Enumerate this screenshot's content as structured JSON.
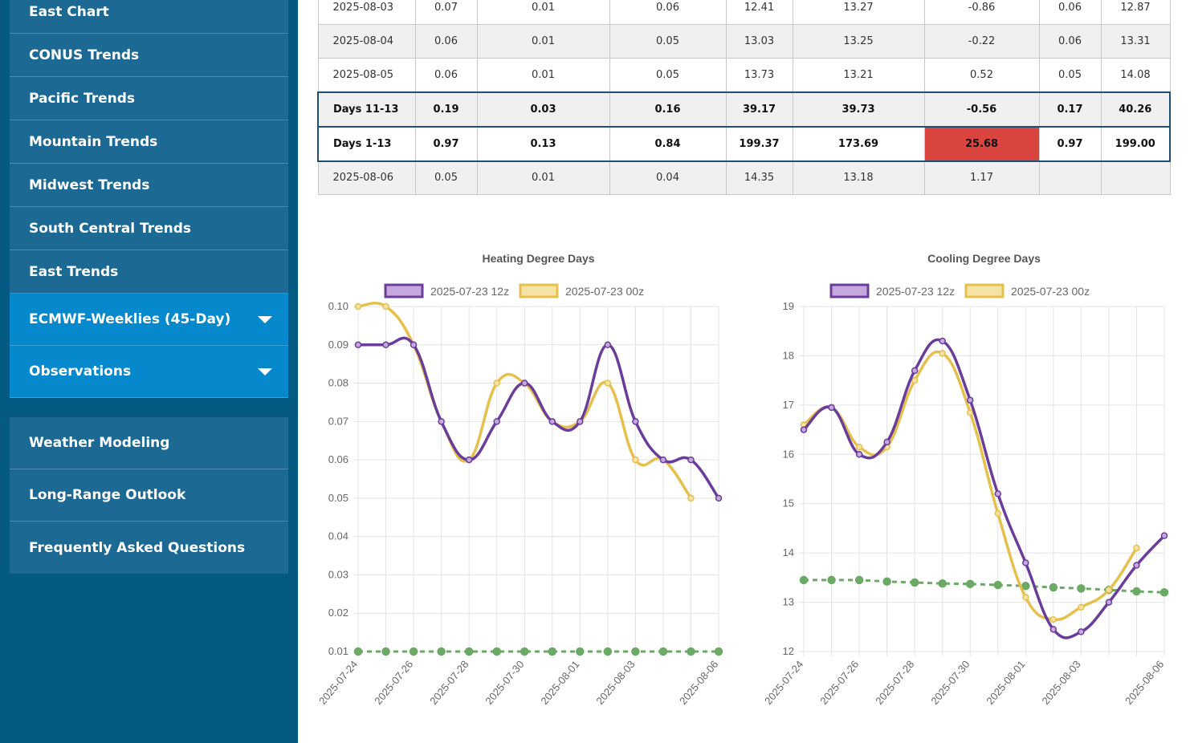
{
  "sidebar": {
    "top_items": [
      {
        "label": "East Chart"
      },
      {
        "label": "CONUS Trends"
      },
      {
        "label": "Pacific Trends"
      },
      {
        "label": "Mountain Trends"
      },
      {
        "label": "Midwest Trends"
      },
      {
        "label": "South Central Trends"
      },
      {
        "label": "East Trends"
      }
    ],
    "expandable_items": [
      {
        "label": "ECMWF-Weeklies (45-Day)"
      },
      {
        "label": "Observations"
      }
    ],
    "bottom_items": [
      {
        "label": "Weather Modeling"
      },
      {
        "label": "Long-Range Outlook"
      },
      {
        "label": "Frequently Asked Questions"
      }
    ],
    "colors": {
      "sidebar_bg": "#055a84",
      "item_bg": "#1c6a93",
      "active_bg": "#0688cc"
    }
  },
  "table": {
    "rows": [
      {
        "type": "date",
        "cells": [
          "2025-08-03",
          "0.07",
          "0.01",
          "0.06",
          "12.41",
          "13.27",
          "-0.86",
          "0.06",
          "12.87"
        ]
      },
      {
        "type": "date",
        "cells": [
          "2025-08-04",
          "0.06",
          "0.01",
          "0.05",
          "13.03",
          "13.25",
          "-0.22",
          "0.06",
          "13.31"
        ]
      },
      {
        "type": "date",
        "cells": [
          "2025-08-05",
          "0.06",
          "0.01",
          "0.05",
          "13.73",
          "13.21",
          "0.52",
          "0.05",
          "14.08"
        ]
      },
      {
        "type": "sum11",
        "cells": [
          "Days 11-13",
          "0.19",
          "0.03",
          "0.16",
          "39.17",
          "39.73",
          "-0.56",
          "0.17",
          "40.26"
        ]
      },
      {
        "type": "sum1",
        "cells": [
          "Days 1-13",
          "0.97",
          "0.13",
          "0.84",
          "199.37",
          "173.69",
          "25.68",
          "0.97",
          "199.00"
        ]
      },
      {
        "type": "date",
        "cells": [
          "2025-08-06",
          "0.05",
          "0.01",
          "0.04",
          "14.35",
          "13.18",
          "1.17",
          "",
          ""
        ]
      }
    ],
    "highlight_color": "#d9443f"
  },
  "chart_data": [
    {
      "type": "line",
      "title": "Heating Degree Days",
      "x": [
        "2025-07-24",
        "2025-07-25",
        "2025-07-26",
        "2025-07-27",
        "2025-07-28",
        "2025-07-29",
        "2025-07-30",
        "2025-07-31",
        "2025-08-01",
        "2025-08-02",
        "2025-08-03",
        "2025-08-04",
        "2025-08-05",
        "2025-08-06"
      ],
      "x_tick_labels": [
        "2025-07-24",
        "2025-07-26",
        "2025-07-28",
        "2025-07-30",
        "2025-08-01",
        "2025-08-03",
        "2025-08-06"
      ],
      "x_tick_index": [
        0,
        2,
        4,
        6,
        8,
        10,
        13
      ],
      "ylim": [
        0.01,
        0.1
      ],
      "y_ticks": [
        "0.01",
        "0.02",
        "0.03",
        "0.04",
        "0.05",
        "0.06",
        "0.07",
        "0.08",
        "0.09",
        "0.10"
      ],
      "grid": true,
      "legend": "top",
      "series": [
        {
          "name": "2025-07-23 12z",
          "color": "#6a3d9a",
          "fill": "#c5a8dd",
          "values": [
            0.09,
            0.09,
            0.09,
            0.07,
            0.06,
            0.07,
            0.08,
            0.07,
            0.07,
            0.09,
            0.07,
            0.06,
            0.06,
            0.05
          ]
        },
        {
          "name": "2025-07-23 00z",
          "color": "#e6c04c",
          "fill": "#f5e3a6",
          "values": [
            0.1,
            0.1,
            0.09,
            0.07,
            0.06,
            0.08,
            0.08,
            0.07,
            0.07,
            0.08,
            0.06,
            0.06,
            0.05,
            null
          ]
        },
        {
          "name": "",
          "color": "#6aaa64",
          "dashed": true,
          "values": [
            0.01,
            0.01,
            0.01,
            0.01,
            0.01,
            0.01,
            0.01,
            0.01,
            0.01,
            0.01,
            0.01,
            0.01,
            0.01,
            0.01
          ]
        }
      ]
    },
    {
      "type": "line",
      "title": "Cooling Degree Days",
      "x": [
        "2025-07-24",
        "2025-07-25",
        "2025-07-26",
        "2025-07-27",
        "2025-07-28",
        "2025-07-29",
        "2025-07-30",
        "2025-07-31",
        "2025-08-01",
        "2025-08-02",
        "2025-08-03",
        "2025-08-04",
        "2025-08-05",
        "2025-08-06"
      ],
      "x_tick_labels": [
        "2025-07-24",
        "2025-07-26",
        "2025-07-28",
        "2025-07-30",
        "2025-08-01",
        "2025-08-03",
        "2025-08-06"
      ],
      "x_tick_index": [
        0,
        2,
        4,
        6,
        8,
        10,
        13
      ],
      "ylim": [
        12,
        19
      ],
      "y_ticks": [
        "12",
        "13",
        "14",
        "15",
        "16",
        "17",
        "18",
        "19"
      ],
      "grid": true,
      "legend": "top",
      "series": [
        {
          "name": "2025-07-23 12z",
          "color": "#6a3d9a",
          "fill": "#c5a8dd",
          "values": [
            16.5,
            16.95,
            16.0,
            16.25,
            17.7,
            18.3,
            17.1,
            15.2,
            13.8,
            12.45,
            12.4,
            13.0,
            13.75,
            14.35
          ]
        },
        {
          "name": "2025-07-23 00z",
          "color": "#e6c04c",
          "fill": "#f5e3a6",
          "values": [
            16.6,
            16.95,
            16.15,
            16.15,
            17.5,
            18.05,
            16.85,
            14.8,
            13.1,
            12.65,
            12.9,
            13.25,
            14.1,
            null
          ]
        },
        {
          "name": "",
          "color": "#6aaa64",
          "dashed": true,
          "values": [
            13.45,
            13.45,
            13.45,
            13.42,
            13.4,
            13.38,
            13.37,
            13.35,
            13.33,
            13.3,
            13.28,
            13.25,
            13.22,
            13.2
          ]
        }
      ]
    }
  ]
}
